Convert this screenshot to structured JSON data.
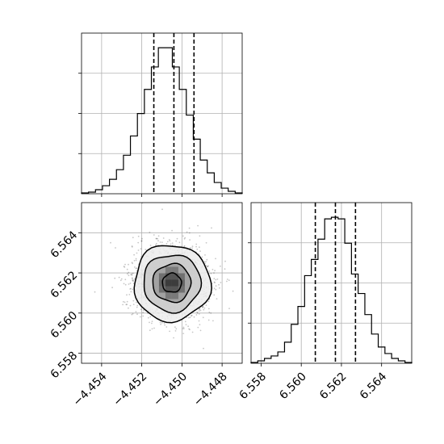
{
  "chart_data": {
    "type": "corner",
    "grid": true,
    "colors": {
      "line": "#000000",
      "grid": "#b0b0b0",
      "background": "#ffffff"
    },
    "params": [
      {
        "range": [
          -4.455,
          -4.447
        ],
        "ticks": [
          -4.454,
          -4.452,
          -4.45,
          -4.448
        ],
        "tick_labels": [
          "−4.454",
          "−4.452",
          "−4.450",
          "−4.448"
        ],
        "quantiles": [
          -4.4514,
          -4.4504,
          -4.4494
        ],
        "hist_values": [
          1,
          2,
          5,
          10,
          18,
          30,
          48,
          72,
          100,
          130,
          158,
          182,
          182,
          158,
          130,
          98,
          68,
          42,
          26,
          14,
          7,
          3,
          1
        ]
      },
      {
        "range": [
          6.5575,
          6.5655
        ],
        "ticks": [
          6.558,
          6.56,
          6.562,
          6.564
        ],
        "tick_labels": [
          "6.558",
          "6.560",
          "6.562",
          "6.564"
        ],
        "quantiles": [
          6.5607,
          6.5617,
          6.5627
        ],
        "hist_values": [
          1,
          3,
          6,
          9,
          14,
          26,
          48,
          70,
          108,
          128,
          153,
          178,
          180,
          178,
          148,
          110,
          86,
          60,
          36,
          20,
          12,
          6,
          3,
          1
        ]
      }
    ],
    "joint": {
      "center": [
        -4.4505,
        6.5615
      ],
      "sigma": [
        0.00095,
        0.00095
      ],
      "n_points": 1800,
      "contour_sigmas": [
        0.5,
        1.0,
        1.5,
        2.0
      ]
    }
  }
}
